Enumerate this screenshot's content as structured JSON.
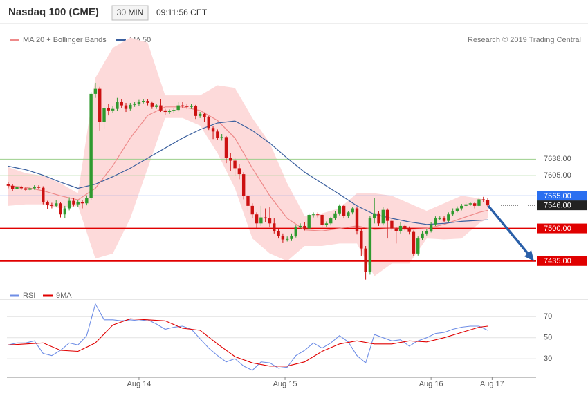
{
  "header": {
    "title": "Nasdaq 100 (CME)",
    "interval": "30 MIN",
    "time": "09:11:56 CET"
  },
  "credit": "Research © 2019 Trading Central",
  "chart_data": [
    {
      "type": "candlestick",
      "up_color": "#2f9a2f",
      "down_color": "#cc1111",
      "xlim": [
        -0.3,
        121.1
      ],
      "ylim": [
        7370,
        7900
      ],
      "candles": [
        [
          7588,
          7592,
          7580,
          7585
        ],
        [
          7585,
          7588,
          7574,
          7578
        ],
        [
          7578,
          7586,
          7575,
          7582
        ],
        [
          7582,
          7585,
          7577,
          7580
        ],
        [
          7580,
          7583,
          7574,
          7577
        ],
        [
          7577,
          7583,
          7574,
          7580
        ],
        [
          7580,
          7586,
          7577,
          7583
        ],
        [
          7583,
          7586,
          7578,
          7581
        ],
        [
          7581,
          7584,
          7548,
          7552
        ],
        [
          7552,
          7555,
          7538,
          7547
        ],
        [
          7547,
          7551,
          7540,
          7545
        ],
        [
          7545,
          7556,
          7542,
          7550
        ],
        [
          7550,
          7553,
          7522,
          7528
        ],
        [
          7528,
          7545,
          7520,
          7540
        ],
        [
          7540,
          7562,
          7536,
          7555
        ],
        [
          7555,
          7560,
          7544,
          7548
        ],
        [
          7548,
          7556,
          7543,
          7552
        ],
        [
          7552,
          7556,
          7540,
          7550
        ],
        [
          7550,
          7566,
          7546,
          7560
        ],
        [
          7560,
          7772,
          7556,
          7768
        ],
        [
          7768,
          7790,
          7760,
          7778
        ],
        [
          7778,
          7782,
          7695,
          7712
        ],
        [
          7712,
          7745,
          7698,
          7740
        ],
        [
          7740,
          7748,
          7725,
          7735
        ],
        [
          7735,
          7744,
          7730,
          7738
        ],
        [
          7738,
          7760,
          7734,
          7752
        ],
        [
          7752,
          7758,
          7740,
          7745
        ],
        [
          7745,
          7750,
          7732,
          7738
        ],
        [
          7738,
          7750,
          7735,
          7746
        ],
        [
          7746,
          7752,
          7742,
          7748
        ],
        [
          7748,
          7756,
          7744,
          7752
        ],
        [
          7752,
          7758,
          7749,
          7754
        ],
        [
          7754,
          7757,
          7745,
          7750
        ],
        [
          7750,
          7753,
          7738,
          7742
        ],
        [
          7742,
          7748,
          7738,
          7745
        ],
        [
          7745,
          7758,
          7732,
          7735
        ],
        [
          7735,
          7738,
          7726,
          7732
        ],
        [
          7732,
          7737,
          7728,
          7734
        ],
        [
          7734,
          7740,
          7730,
          7736
        ],
        [
          7736,
          7752,
          7733,
          7745
        ],
        [
          7745,
          7752,
          7740,
          7744
        ],
        [
          7744,
          7748,
          7738,
          7742
        ],
        [
          7742,
          7748,
          7738,
          7744
        ],
        [
          7744,
          7746,
          7718,
          7724
        ],
        [
          7724,
          7732,
          7720,
          7728
        ],
        [
          7728,
          7731,
          7712,
          7722
        ],
        [
          7722,
          7724,
          7696,
          7700
        ],
        [
          7700,
          7703,
          7678,
          7693
        ],
        [
          7693,
          7697,
          7676,
          7680
        ],
        [
          7680,
          7688,
          7675,
          7682
        ],
        [
          7682,
          7684,
          7630,
          7640
        ],
        [
          7640,
          7650,
          7615,
          7635
        ],
        [
          7635,
          7640,
          7605,
          7620
        ],
        [
          7620,
          7628,
          7598,
          7608
        ],
        [
          7608,
          7612,
          7558,
          7565
        ],
        [
          7565,
          7568,
          7535,
          7545
        ],
        [
          7545,
          7550,
          7520,
          7528
        ],
        [
          7528,
          7532,
          7500,
          7510
        ],
        [
          7510,
          7545,
          7505,
          7522
        ],
        [
          7522,
          7540,
          7512,
          7520
        ],
        [
          7520,
          7542,
          7503,
          7510
        ],
        [
          7510,
          7520,
          7490,
          7495
        ],
        [
          7495,
          7500,
          7480,
          7485
        ],
        [
          7485,
          7490,
          7472,
          7478
        ],
        [
          7478,
          7484,
          7474,
          7479
        ],
        [
          7479,
          7490,
          7475,
          7485
        ],
        [
          7485,
          7506,
          7482,
          7502
        ],
        [
          7502,
          7510,
          7498,
          7505
        ],
        [
          7505,
          7512,
          7496,
          7500
        ],
        [
          7500,
          7530,
          7498,
          7527
        ],
        [
          7527,
          7532,
          7522,
          7528
        ],
        [
          7528,
          7532,
          7522,
          7527
        ],
        [
          7527,
          7530,
          7502,
          7507
        ],
        [
          7507,
          7514,
          7503,
          7510
        ],
        [
          7510,
          7523,
          7506,
          7520
        ],
        [
          7520,
          7534,
          7516,
          7530
        ],
        [
          7530,
          7548,
          7526,
          7545
        ],
        [
          7545,
          7548,
          7520,
          7525
        ],
        [
          7525,
          7535,
          7520,
          7532
        ],
        [
          7532,
          7543,
          7528,
          7540
        ],
        [
          7540,
          7542,
          7488,
          7495
        ],
        [
          7495,
          7498,
          7445,
          7460
        ],
        [
          7460,
          7465,
          7398,
          7413
        ],
        [
          7413,
          7525,
          7408,
          7520
        ],
        [
          7520,
          7560,
          7510,
          7530
        ],
        [
          7530,
          7535,
          7505,
          7510
        ],
        [
          7510,
          7542,
          7506,
          7537
        ],
        [
          7537,
          7540,
          7480,
          7515
        ],
        [
          7515,
          7520,
          7496,
          7500
        ],
        [
          7500,
          7503,
          7470,
          7495
        ],
        [
          7495,
          7512,
          7490,
          7505
        ],
        [
          7505,
          7508,
          7496,
          7500
        ],
        [
          7500,
          7504,
          7488,
          7493
        ],
        [
          7493,
          7496,
          7445,
          7450
        ],
        [
          7450,
          7484,
          7446,
          7480
        ],
        [
          7480,
          7494,
          7476,
          7490
        ],
        [
          7490,
          7498,
          7486,
          7495
        ],
        [
          7495,
          7512,
          7492,
          7508
        ],
        [
          7508,
          7524,
          7505,
          7520
        ],
        [
          7520,
          7524,
          7516,
          7520
        ],
        [
          7520,
          7524,
          7512,
          7515
        ],
        [
          7515,
          7532,
          7512,
          7528
        ],
        [
          7528,
          7540,
          7525,
          7535
        ],
        [
          7535,
          7544,
          7532,
          7540
        ],
        [
          7540,
          7549,
          7536,
          7545
        ],
        [
          7545,
          7552,
          7543,
          7548
        ],
        [
          7548,
          7553,
          7545,
          7550
        ],
        [
          7550,
          7552,
          7540,
          7545
        ],
        [
          7545,
          7562,
          7542,
          7558
        ],
        [
          7558,
          7563,
          7552,
          7557
        ],
        [
          7557,
          7560,
          7543,
          7546
        ]
      ],
      "line_x": [
        0,
        4,
        8,
        12,
        16,
        20,
        24,
        28,
        32,
        36,
        40,
        44,
        48,
        52,
        56,
        60,
        64,
        68,
        72,
        76,
        80,
        84,
        88,
        92,
        96,
        100,
        104,
        108,
        110
      ],
      "band": {
        "color": "#fddada",
        "upper": [
          7622,
          7610,
          7605,
          7590,
          7570,
          7800,
          7860,
          7880,
          7870,
          7765,
          7765,
          7765,
          7785,
          7780,
          7720,
          7670,
          7590,
          7525,
          7530,
          7540,
          7570,
          7570,
          7565,
          7550,
          7535,
          7550,
          7565,
          7560,
          7555
        ],
        "lower": [
          7545,
          7548,
          7548,
          7540,
          7545,
          7440,
          7450,
          7520,
          7620,
          7720,
          7720,
          7705,
          7650,
          7580,
          7480,
          7450,
          7435,
          7465,
          7465,
          7470,
          7470,
          7405,
          7430,
          7430,
          7480,
          7478,
          7480,
          7510,
          7520
        ]
      },
      "series": [
        {
          "name": "MA 20 + Bollinger Bands",
          "color": "#ee8a8a",
          "values": [
            7585,
            7582,
            7575,
            7565,
            7557,
            7580,
            7625,
            7680,
            7725,
            7742,
            7742,
            7735,
            7715,
            7680,
            7620,
            7565,
            7520,
            7497,
            7495,
            7500,
            7505,
            7498,
            7500,
            7498,
            7500,
            7508,
            7520,
            7532,
            7536
          ]
        },
        {
          "name": "MA 50",
          "color": "#3a5f9e",
          "values": [
            7624,
            7617,
            7606,
            7592,
            7580,
            7588,
            7603,
            7620,
            7640,
            7660,
            7680,
            7697,
            7710,
            7714,
            7695,
            7670,
            7640,
            7612,
            7590,
            7568,
            7545,
            7528,
            7520,
            7513,
            7508,
            7510,
            7514,
            7516,
            7517
          ]
        }
      ],
      "levels": [
        {
          "value": 7638,
          "label": "7638.00",
          "color": "#9ccf8c",
          "style": "thin",
          "box": null
        },
        {
          "value": 7605,
          "label": "7605.00",
          "color": "#9ccf8c",
          "style": "thin",
          "box": null
        },
        {
          "value": 7565,
          "label": "7565.00",
          "color": "#4d7ee8",
          "style": "thin",
          "box": "#2a6ff0"
        },
        {
          "value": 7546,
          "label": "7546.00",
          "color": "#444444",
          "style": "dotted",
          "box": "#222222"
        },
        {
          "value": 7500,
          "label": "7500.00",
          "color": "#e00000",
          "style": "thick",
          "box": "#e00000"
        },
        {
          "value": 7435,
          "label": "7435.00",
          "color": "#e00000",
          "style": "thick",
          "box": "#e00000"
        }
      ]
    },
    {
      "type": "line",
      "xlim": [
        -0.3,
        121.1
      ],
      "ylim": [
        13,
        82
      ],
      "yticks": [
        30,
        50,
        70
      ],
      "grid": true,
      "xticks": [
        {
          "value": 30,
          "label": "Aug 14"
        },
        {
          "value": 63.5,
          "label": "Aug 15"
        },
        {
          "value": 97,
          "label": "Aug 16"
        },
        {
          "value": 111,
          "label": "Aug 17"
        }
      ],
      "series": [
        {
          "name": "RSI",
          "color": "#6f8ee6",
          "x": [
            0,
            2,
            4,
            6,
            8,
            10,
            12,
            14,
            16,
            18,
            20,
            22,
            24,
            26,
            28,
            30,
            32,
            34,
            36,
            38,
            40,
            42,
            44,
            46,
            48,
            50,
            52,
            54,
            56,
            58,
            60,
            62,
            64,
            66,
            68,
            70,
            72,
            74,
            76,
            78,
            80,
            82,
            84,
            86,
            88,
            90,
            92,
            94,
            96,
            98,
            100,
            102,
            104,
            106,
            108,
            110
          ],
          "values": [
            43,
            45,
            45,
            47,
            35,
            33,
            38,
            45,
            43,
            52,
            82,
            67,
            67,
            66,
            67,
            66,
            67,
            63,
            58,
            60,
            61,
            58,
            49,
            40,
            33,
            27,
            30,
            23,
            19,
            27,
            26,
            21,
            22,
            33,
            38,
            45,
            40,
            45,
            52,
            46,
            33,
            26,
            53,
            50,
            47,
            48,
            42,
            47,
            50,
            54,
            55,
            58,
            60,
            61,
            61,
            57
          ]
        },
        {
          "name": "9MA",
          "color": "#e00000",
          "x": [
            0,
            4,
            8,
            12,
            16,
            20,
            24,
            28,
            32,
            36,
            40,
            44,
            48,
            52,
            56,
            60,
            64,
            68,
            72,
            76,
            80,
            84,
            88,
            92,
            96,
            100,
            104,
            108,
            110
          ],
          "values": [
            43,
            44,
            45,
            38,
            37,
            45,
            62,
            68,
            67,
            66,
            59,
            57,
            44,
            32,
            26,
            23,
            23,
            27,
            37,
            44,
            47,
            44,
            44,
            47,
            46,
            50,
            55,
            60,
            61
          ]
        }
      ]
    }
  ]
}
